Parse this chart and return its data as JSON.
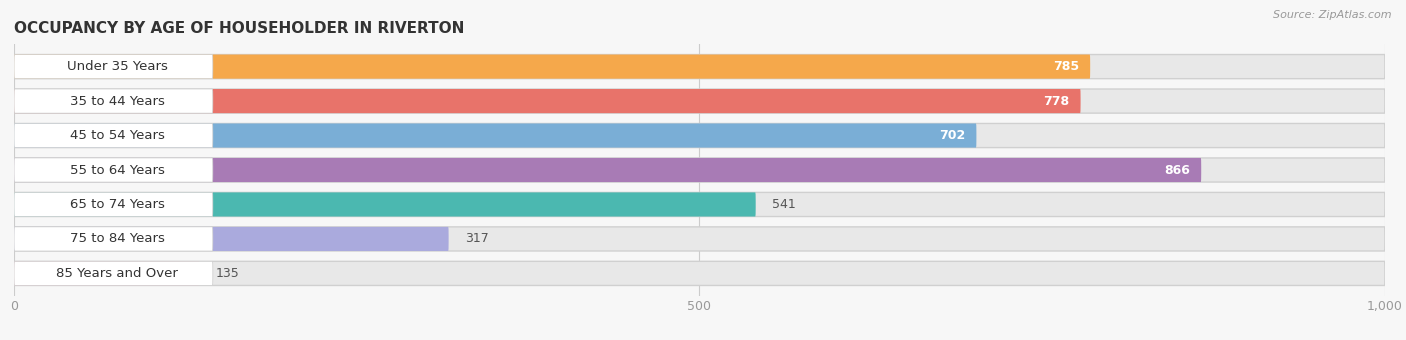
{
  "title": "OCCUPANCY BY AGE OF HOUSEHOLDER IN RIVERTON",
  "source": "Source: ZipAtlas.com",
  "categories": [
    "Under 35 Years",
    "35 to 44 Years",
    "45 to 54 Years",
    "55 to 64 Years",
    "65 to 74 Years",
    "75 to 84 Years",
    "85 Years and Over"
  ],
  "values": [
    785,
    778,
    702,
    866,
    541,
    317,
    135
  ],
  "bar_colors": [
    "#F5A84B",
    "#E8736A",
    "#7AAED6",
    "#A87BB5",
    "#4BB8B0",
    "#AAAADD",
    "#F4AABB"
  ],
  "bar_bg_color": "#e8e8e8",
  "label_bg_color": "#ffffff",
  "xlim_min": 0,
  "xlim_max": 1000,
  "xticks": [
    0,
    500,
    1000
  ],
  "xticklabels": [
    "0",
    "500",
    "1,000"
  ],
  "label_fontsize": 9.5,
  "value_fontsize": 9.0,
  "title_fontsize": 11,
  "bar_height": 0.7,
  "bg_color": "#f7f7f7"
}
